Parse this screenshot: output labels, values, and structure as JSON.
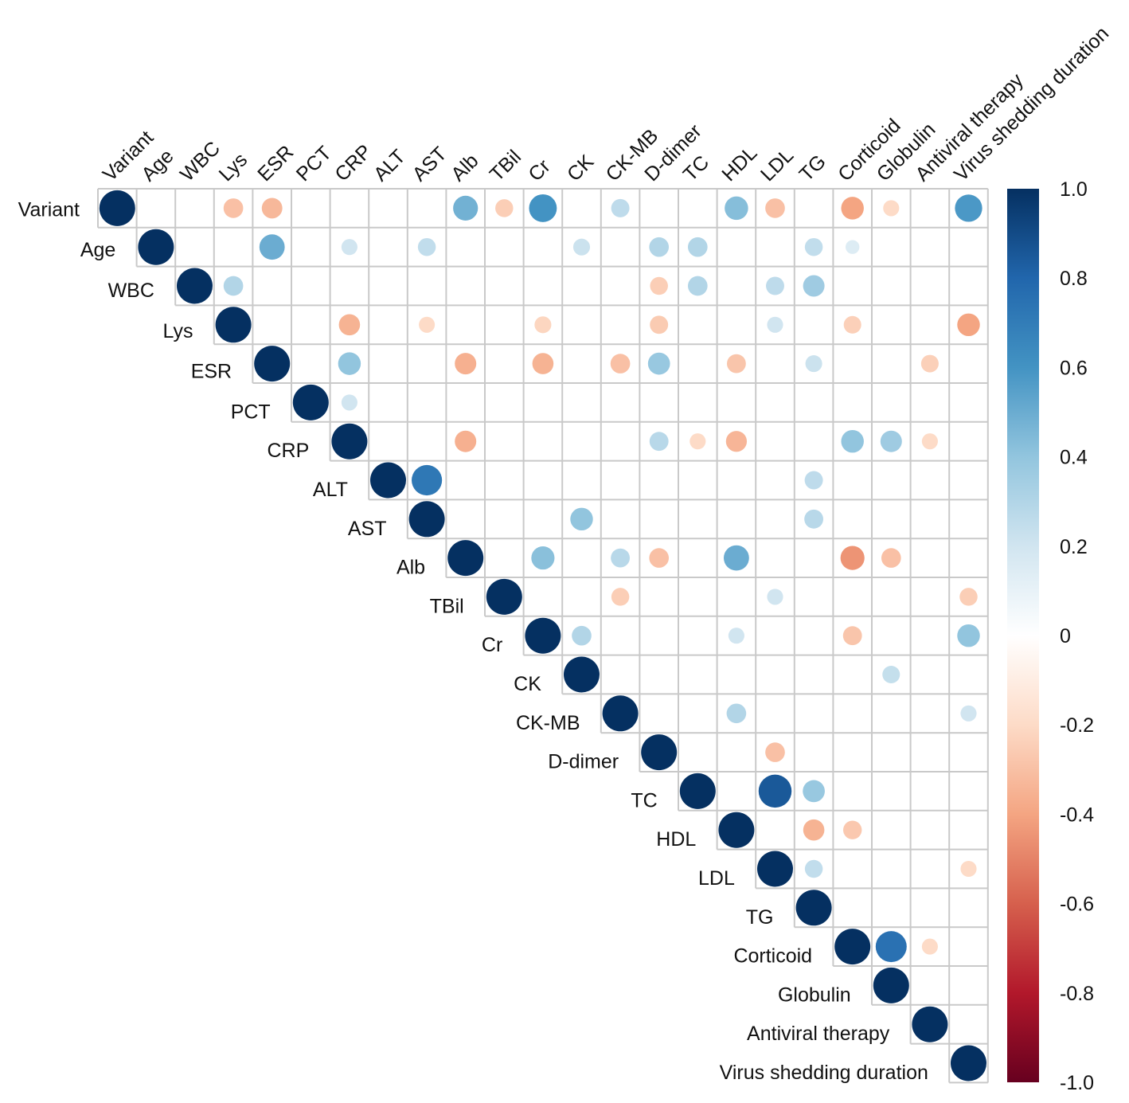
{
  "chart_data": {
    "type": "heatmap",
    "subtype": "correlation-circle-upper-triangle",
    "variables": [
      "Variant",
      "Age",
      "WBC",
      "Lys",
      "ESR",
      "PCT",
      "CRP",
      "ALT",
      "AST",
      "Alb",
      "TBil",
      "Cr",
      "CK",
      "CK-MB",
      "D-dimer",
      "TC",
      "HDL",
      "LDL",
      "TG",
      "Corticoid",
      "Globulin",
      "Antiviral therapy",
      "Virus shedding duration"
    ],
    "correlations": [
      {
        "row": "Variant",
        "col": "Variant",
        "value": 1.0
      },
      {
        "row": "Variant",
        "col": "Lys",
        "value": -0.3
      },
      {
        "row": "Variant",
        "col": "ESR",
        "value": -0.33
      },
      {
        "row": "Variant",
        "col": "Alb",
        "value": 0.48
      },
      {
        "row": "Variant",
        "col": "TBil",
        "value": -0.25
      },
      {
        "row": "Variant",
        "col": "Cr",
        "value": 0.6
      },
      {
        "row": "Variant",
        "col": "CK-MB",
        "value": 0.26
      },
      {
        "row": "Variant",
        "col": "HDL",
        "value": 0.43
      },
      {
        "row": "Variant",
        "col": "LDL",
        "value": -0.3
      },
      {
        "row": "Variant",
        "col": "Corticoid",
        "value": -0.4
      },
      {
        "row": "Variant",
        "col": "Globulin",
        "value": -0.2
      },
      {
        "row": "Variant",
        "col": "Virus shedding duration",
        "value": 0.58
      },
      {
        "row": "Age",
        "col": "Age",
        "value": 1.0
      },
      {
        "row": "Age",
        "col": "ESR",
        "value": 0.5
      },
      {
        "row": "Age",
        "col": "CRP",
        "value": 0.2
      },
      {
        "row": "Age",
        "col": "AST",
        "value": 0.25
      },
      {
        "row": "Age",
        "col": "CK",
        "value": 0.22
      },
      {
        "row": "Age",
        "col": "D-dimer",
        "value": 0.3
      },
      {
        "row": "Age",
        "col": "TC",
        "value": 0.3
      },
      {
        "row": "Age",
        "col": "TG",
        "value": 0.25
      },
      {
        "row": "Age",
        "col": "Corticoid",
        "value": 0.15
      },
      {
        "row": "WBC",
        "col": "WBC",
        "value": 1.0
      },
      {
        "row": "WBC",
        "col": "Lys",
        "value": 0.3
      },
      {
        "row": "WBC",
        "col": "D-dimer",
        "value": -0.25
      },
      {
        "row": "WBC",
        "col": "TC",
        "value": 0.3
      },
      {
        "row": "WBC",
        "col": "LDL",
        "value": 0.26
      },
      {
        "row": "WBC",
        "col": "TG",
        "value": 0.36
      },
      {
        "row": "Lys",
        "col": "Lys",
        "value": 1.0
      },
      {
        "row": "Lys",
        "col": "CRP",
        "value": -0.35
      },
      {
        "row": "Lys",
        "col": "AST",
        "value": -0.2
      },
      {
        "row": "Lys",
        "col": "Cr",
        "value": -0.22
      },
      {
        "row": "Lys",
        "col": "D-dimer",
        "value": -0.26
      },
      {
        "row": "Lys",
        "col": "LDL",
        "value": 0.2
      },
      {
        "row": "Lys",
        "col": "Corticoid",
        "value": -0.24
      },
      {
        "row": "Lys",
        "col": "Virus shedding duration",
        "value": -0.4
      },
      {
        "row": "ESR",
        "col": "ESR",
        "value": 1.0
      },
      {
        "row": "ESR",
        "col": "CRP",
        "value": 0.4
      },
      {
        "row": "ESR",
        "col": "Alb",
        "value": -0.36
      },
      {
        "row": "ESR",
        "col": "Cr",
        "value": -0.35
      },
      {
        "row": "ESR",
        "col": "CK-MB",
        "value": -0.3
      },
      {
        "row": "ESR",
        "col": "D-dimer",
        "value": 0.38
      },
      {
        "row": "ESR",
        "col": "HDL",
        "value": -0.28
      },
      {
        "row": "ESR",
        "col": "TG",
        "value": 0.22
      },
      {
        "row": "ESR",
        "col": "Antiviral therapy",
        "value": -0.24
      },
      {
        "row": "PCT",
        "col": "PCT",
        "value": 1.0
      },
      {
        "row": "PCT",
        "col": "CRP",
        "value": 0.2
      },
      {
        "row": "CRP",
        "col": "CRP",
        "value": 1.0
      },
      {
        "row": "CRP",
        "col": "Alb",
        "value": -0.36
      },
      {
        "row": "CRP",
        "col": "D-dimer",
        "value": 0.28
      },
      {
        "row": "CRP",
        "col": "TC",
        "value": -0.2
      },
      {
        "row": "CRP",
        "col": "HDL",
        "value": -0.34
      },
      {
        "row": "CRP",
        "col": "Corticoid",
        "value": 0.4
      },
      {
        "row": "CRP",
        "col": "Globulin",
        "value": 0.36
      },
      {
        "row": "CRP",
        "col": "Antiviral therapy",
        "value": -0.2
      },
      {
        "row": "ALT",
        "col": "ALT",
        "value": 1.0
      },
      {
        "row": "ALT",
        "col": "AST",
        "value": 0.72
      },
      {
        "row": "ALT",
        "col": "TG",
        "value": 0.26
      },
      {
        "row": "AST",
        "col": "AST",
        "value": 1.0
      },
      {
        "row": "AST",
        "col": "CK",
        "value": 0.4
      },
      {
        "row": "AST",
        "col": "TG",
        "value": 0.28
      },
      {
        "row": "Alb",
        "col": "Alb",
        "value": 1.0
      },
      {
        "row": "Alb",
        "col": "Cr",
        "value": 0.42
      },
      {
        "row": "Alb",
        "col": "CK-MB",
        "value": 0.28
      },
      {
        "row": "Alb",
        "col": "D-dimer",
        "value": -0.3
      },
      {
        "row": "Alb",
        "col": "HDL",
        "value": 0.5
      },
      {
        "row": "Alb",
        "col": "Corticoid",
        "value": -0.45
      },
      {
        "row": "Alb",
        "col": "Globulin",
        "value": -0.3
      },
      {
        "row": "TBil",
        "col": "TBil",
        "value": 1.0
      },
      {
        "row": "TBil",
        "col": "CK-MB",
        "value": -0.25
      },
      {
        "row": "TBil",
        "col": "LDL",
        "value": 0.2
      },
      {
        "row": "TBil",
        "col": "Virus shedding duration",
        "value": -0.25
      },
      {
        "row": "Cr",
        "col": "Cr",
        "value": 1.0
      },
      {
        "row": "Cr",
        "col": "CK",
        "value": 0.3
      },
      {
        "row": "Cr",
        "col": "HDL",
        "value": 0.2
      },
      {
        "row": "Cr",
        "col": "Corticoid",
        "value": -0.28
      },
      {
        "row": "Cr",
        "col": "Virus shedding duration",
        "value": 0.4
      },
      {
        "row": "CK",
        "col": "CK",
        "value": 1.0
      },
      {
        "row": "CK",
        "col": "Globulin",
        "value": 0.24
      },
      {
        "row": "CK-MB",
        "col": "CK-MB",
        "value": 1.0
      },
      {
        "row": "CK-MB",
        "col": "HDL",
        "value": 0.3
      },
      {
        "row": "CK-MB",
        "col": "Virus shedding duration",
        "value": 0.2
      },
      {
        "row": "D-dimer",
        "col": "D-dimer",
        "value": 1.0
      },
      {
        "row": "D-dimer",
        "col": "LDL",
        "value": -0.3
      },
      {
        "row": "TC",
        "col": "TC",
        "value": 1.0
      },
      {
        "row": "TC",
        "col": "LDL",
        "value": 0.85
      },
      {
        "row": "TC",
        "col": "TG",
        "value": 0.38
      },
      {
        "row": "HDL",
        "col": "HDL",
        "value": 1.0
      },
      {
        "row": "HDL",
        "col": "TG",
        "value": -0.35
      },
      {
        "row": "HDL",
        "col": "Corticoid",
        "value": -0.27
      },
      {
        "row": "LDL",
        "col": "LDL",
        "value": 1.0
      },
      {
        "row": "LDL",
        "col": "TG",
        "value": 0.25
      },
      {
        "row": "LDL",
        "col": "Virus shedding duration",
        "value": -0.2
      },
      {
        "row": "TG",
        "col": "TG",
        "value": 1.0
      },
      {
        "row": "Corticoid",
        "col": "Corticoid",
        "value": 1.0
      },
      {
        "row": "Corticoid",
        "col": "Globulin",
        "value": 0.75
      },
      {
        "row": "Corticoid",
        "col": "Antiviral therapy",
        "value": -0.2
      },
      {
        "row": "Globulin",
        "col": "Globulin",
        "value": 1.0
      },
      {
        "row": "Antiviral therapy",
        "col": "Antiviral therapy",
        "value": 1.0
      },
      {
        "row": "Virus shedding duration",
        "col": "Virus shedding duration",
        "value": 1.0
      }
    ],
    "colorbar": {
      "ticks": [
        "1.0",
        "0.8",
        "0.6",
        "0.4",
        "0.2",
        "0",
        "-0.2",
        "-0.4",
        "-0.6",
        "-0.8",
        "-1.0"
      ],
      "range": [
        -1.0,
        1.0
      ],
      "colors": {
        "neg_1": "#67001f",
        "neg_0.8": "#b2182b",
        "neg_0.6": "#d6604d",
        "neg_0.4": "#f4a582",
        "neg_0.2": "#fddbc7",
        "zero": "#ffffff",
        "pos_0.2": "#d1e5f0",
        "pos_0.4": "#92c5de",
        "pos_0.6": "#4393c3",
        "pos_0.8": "#2166ac",
        "pos_1": "#053061"
      }
    },
    "grid": true,
    "legend": "right"
  }
}
